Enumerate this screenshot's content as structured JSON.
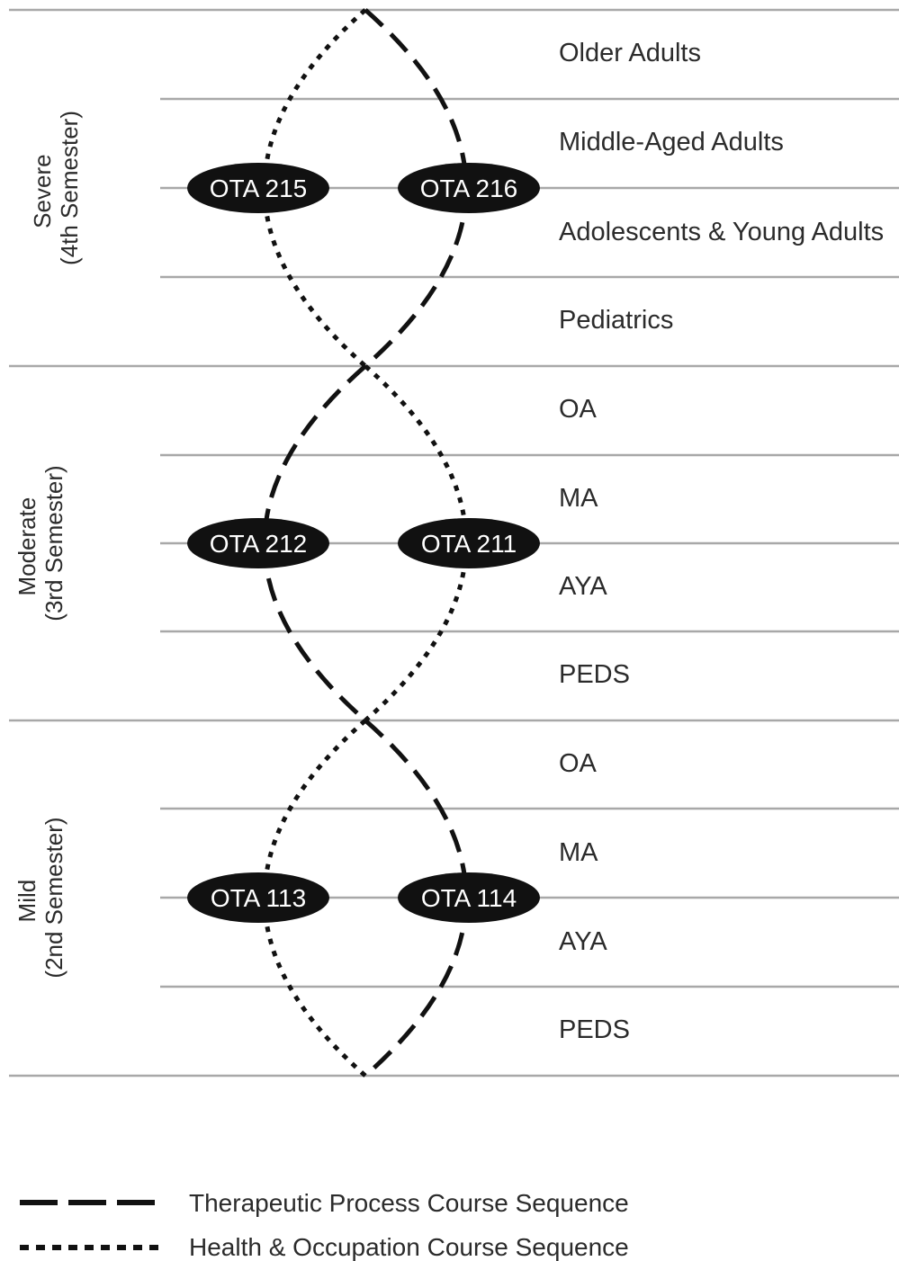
{
  "bands": [
    {
      "line1": "Severe",
      "line2": "(4th Semester)"
    },
    {
      "line1": "Moderate",
      "line2": "(3rd Semester)"
    },
    {
      "line1": "Mild",
      "line2": "(2nd Semester)"
    }
  ],
  "rows": [
    "Older Adults",
    "Middle-Aged Adults",
    "Adolescents & Young Adults",
    "Pediatrics",
    "OA",
    "MA",
    "AYA",
    "PEDS",
    "OA",
    "MA",
    "AYA",
    "PEDS"
  ],
  "courses": {
    "severe_left": "OTA 215",
    "severe_right": "OTA 216",
    "moderate_left": "OTA 212",
    "moderate_right": "OTA 211",
    "mild_left": "OTA 113",
    "mild_right": "OTA 114"
  },
  "legend": {
    "dashed": "Therapeutic Process Course Sequence",
    "dotted": "Health & Occupation Course Sequence"
  }
}
